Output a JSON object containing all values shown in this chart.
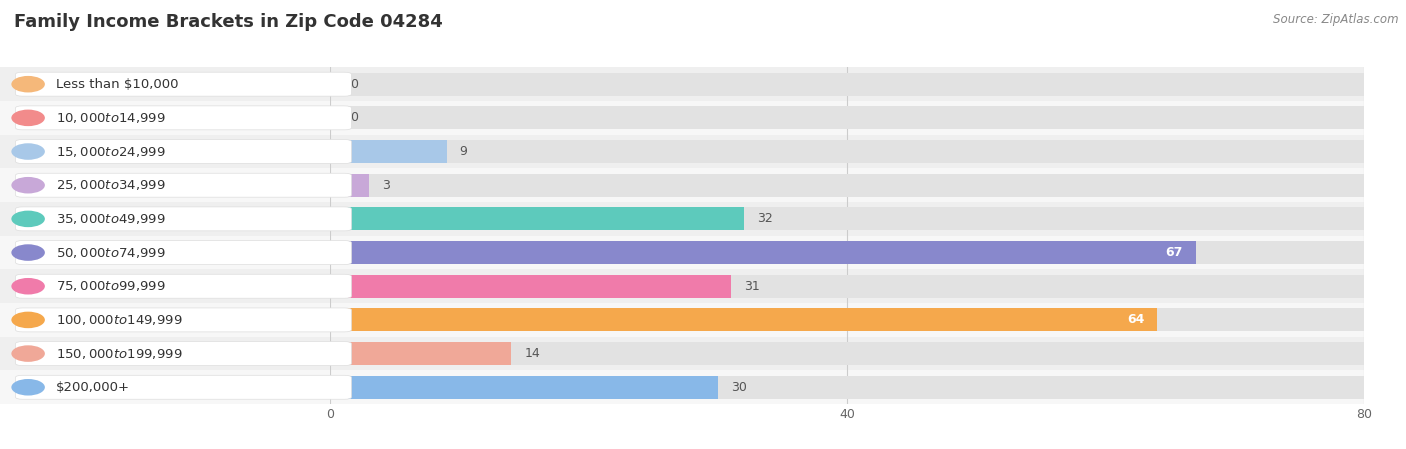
{
  "title": "Family Income Brackets in Zip Code 04284",
  "source": "Source: ZipAtlas.com",
  "categories": [
    "Less than $10,000",
    "$10,000 to $14,999",
    "$15,000 to $24,999",
    "$25,000 to $34,999",
    "$35,000 to $49,999",
    "$50,000 to $74,999",
    "$75,000 to $99,999",
    "$100,000 to $149,999",
    "$150,000 to $199,999",
    "$200,000+"
  ],
  "values": [
    0,
    0,
    9,
    3,
    32,
    67,
    31,
    64,
    14,
    30
  ],
  "bar_colors": [
    "#F5B87A",
    "#F28B8B",
    "#A8C8E8",
    "#C8A8D8",
    "#5DCABC",
    "#8888CC",
    "#F07BAA",
    "#F5A84C",
    "#F0A898",
    "#88B8E8"
  ],
  "xlim_data": [
    0,
    80
  ],
  "xticks": [
    0,
    40,
    80
  ],
  "row_bg_even": "#efefef",
  "row_bg_odd": "#f7f7f7",
  "pill_bg": "#ffffff",
  "bar_bg_color": "#e2e2e2",
  "title_fontsize": 13,
  "label_fontsize": 9.5,
  "value_label_fontsize": 9,
  "source_fontsize": 8.5
}
